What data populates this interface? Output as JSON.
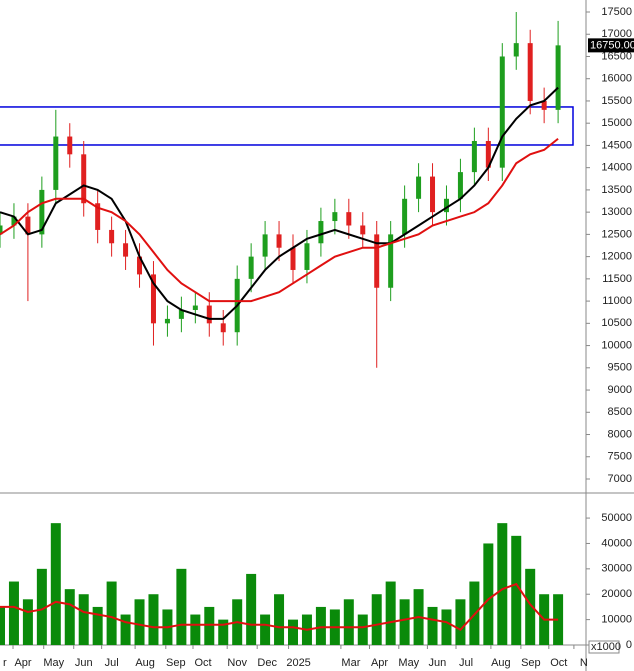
{
  "chart_data": [
    {
      "type": "candlestick",
      "x": [
        0,
        2,
        4,
        6,
        8,
        10,
        12,
        14,
        16,
        18,
        20,
        22,
        24,
        26,
        28,
        30,
        32,
        34,
        36,
        38,
        40,
        42,
        44,
        46,
        48,
        50,
        52,
        54,
        56,
        58,
        60,
        62,
        64,
        66,
        68,
        70,
        72,
        74,
        76,
        78,
        80
      ],
      "open": [
        12500,
        12700,
        12900,
        12500,
        13500,
        14700,
        14300,
        13200,
        12600,
        12300,
        12000,
        11600,
        10500,
        10600,
        10800,
        10900,
        10500,
        10300,
        11500,
        12000,
        12500,
        12200,
        11700,
        12300,
        12800,
        13000,
        12700,
        12500,
        11300,
        12500,
        13300,
        13800,
        13000,
        13300,
        13900,
        14600,
        14000,
        16500,
        16800,
        15500,
        15300
      ],
      "high": [
        13000,
        13200,
        13200,
        13800,
        15300,
        15000,
        14600,
        13500,
        12900,
        12600,
        12300,
        11900,
        10900,
        11100,
        11200,
        11200,
        10800,
        11800,
        12300,
        12800,
        12800,
        12500,
        12600,
        13100,
        13300,
        13300,
        13000,
        12800,
        12800,
        13600,
        14100,
        14100,
        13600,
        14200,
        14900,
        14900,
        16800,
        17500,
        17100,
        15800,
        17300
      ],
      "low": [
        12200,
        12400,
        11000,
        12200,
        13200,
        14000,
        12900,
        12300,
        12000,
        11700,
        11300,
        10000,
        10200,
        10300,
        10500,
        10200,
        10000,
        10000,
        11200,
        11700,
        11900,
        11400,
        11400,
        12000,
        12500,
        12400,
        12200,
        9500,
        11000,
        12200,
        13000,
        12700,
        12700,
        13000,
        13600,
        13700,
        13700,
        16200,
        15200,
        15000,
        15000
      ],
      "close": [
        12700,
        12900,
        12500,
        13500,
        14700,
        14300,
        13200,
        12600,
        12300,
        12000,
        11600,
        10500,
        10600,
        10800,
        10900,
        10500,
        10300,
        11500,
        12000,
        12500,
        12200,
        11700,
        12300,
        12800,
        13000,
        12700,
        12500,
        11300,
        12500,
        13300,
        13800,
        13000,
        13300,
        13900,
        14600,
        14000,
        16500,
        16800,
        15500,
        15300,
        16750
      ],
      "up_color": "#1e9e1e",
      "down_color": "#e02020",
      "series": [
        {
          "color": "#000000",
          "values": [
            13000,
            12900,
            12500,
            12600,
            13200,
            13400,
            13600,
            13500,
            13300,
            12800,
            12000,
            11400,
            11000,
            10800,
            10700,
            10600,
            10600,
            10900,
            11300,
            11700,
            12000,
            12200,
            12400,
            12500,
            12600,
            12500,
            12400,
            12300,
            12300,
            12500,
            12700,
            12900,
            13100,
            13300,
            13600,
            14000,
            14700,
            15100,
            15400,
            15500,
            15800
          ]
        },
        {
          "color": "#e01010",
          "values": [
            12500,
            12700,
            13000,
            13200,
            13300,
            13300,
            13300,
            13100,
            13000,
            12800,
            12500,
            12100,
            11700,
            11400,
            11200,
            11000,
            11000,
            11000,
            11000,
            11100,
            11200,
            11400,
            11600,
            11800,
            12000,
            12100,
            12200,
            12200,
            12300,
            12400,
            12500,
            12700,
            12800,
            12900,
            13000,
            13200,
            13600,
            14100,
            14300,
            14400,
            14650
          ]
        }
      ],
      "zone": {
        "low": 14510,
        "high": 15365,
        "color": "#0000dd"
      },
      "last_price": {
        "value": 16750,
        "label": "16750.00"
      },
      "xlim": [
        0,
        84
      ],
      "ylim": [
        6685,
        17770
      ],
      "yticks": [
        7000,
        7500,
        8000,
        8500,
        9000,
        9500,
        10000,
        10500,
        11000,
        11500,
        12000,
        12500,
        13000,
        13500,
        14000,
        14500,
        15000,
        15500,
        16000,
        16500,
        17000,
        17500
      ]
    },
    {
      "type": "bar",
      "x": [
        0,
        2,
        4,
        6,
        8,
        10,
        12,
        14,
        16,
        18,
        20,
        22,
        24,
        26,
        28,
        30,
        32,
        34,
        36,
        38,
        40,
        42,
        44,
        46,
        48,
        50,
        52,
        54,
        56,
        58,
        60,
        62,
        64,
        66,
        68,
        70,
        72,
        74,
        76,
        78,
        80
      ],
      "values": [
        15000,
        25000,
        18000,
        30000,
        48000,
        22000,
        20000,
        15000,
        25000,
        12000,
        18000,
        20000,
        14000,
        30000,
        12000,
        15000,
        10000,
        18000,
        28000,
        12000,
        20000,
        10000,
        12000,
        15000,
        14000,
        18000,
        12000,
        20000,
        25000,
        18000,
        22000,
        15000,
        14000,
        18000,
        25000,
        40000,
        48000,
        43000,
        30000,
        20000,
        20000
      ],
      "color": "#0a8a0a",
      "series": [
        {
          "color": "#e01010",
          "values": [
            15000,
            15000,
            13000,
            14000,
            17000,
            16000,
            13000,
            12000,
            11000,
            9000,
            8000,
            7000,
            7000,
            8000,
            8000,
            8000,
            8000,
            9000,
            8000,
            8000,
            7000,
            7000,
            6000,
            7000,
            7000,
            7000,
            7000,
            8000,
            9000,
            10000,
            11000,
            10000,
            9000,
            6000,
            12000,
            18000,
            22000,
            24000,
            16000,
            10000,
            10000
          ]
        }
      ],
      "volume_unit": "x1000",
      "xlim": [
        0,
        84
      ],
      "ylim": [
        0,
        58300
      ],
      "yticks": [
        0,
        10000,
        20000,
        30000,
        40000,
        50000
      ],
      "xticks": [
        {
          "value": 0.7,
          "label": "r"
        },
        {
          "value": 3.3,
          "label": "Apr"
        },
        {
          "value": 7.7,
          "label": "May"
        },
        {
          "value": 12,
          "label": "Jun"
        },
        {
          "value": 16,
          "label": "Jul"
        },
        {
          "value": 20.8,
          "label": "Aug"
        },
        {
          "value": 25.2,
          "label": "Sep"
        },
        {
          "value": 29.1,
          "label": "Oct"
        },
        {
          "value": 34,
          "label": "Nov"
        },
        {
          "value": 38.3,
          "label": "Dec"
        },
        {
          "value": 42.8,
          "label": "2025"
        },
        {
          "value": 50.3,
          "label": "Mar"
        },
        {
          "value": 54.4,
          "label": "Apr"
        },
        {
          "value": 58.6,
          "label": "May"
        },
        {
          "value": 62.7,
          "label": "Jun"
        },
        {
          "value": 66.8,
          "label": "Jul"
        },
        {
          "value": 71.8,
          "label": "Aug"
        },
        {
          "value": 76.1,
          "label": "Sep"
        },
        {
          "value": 80.1,
          "label": "Oct"
        },
        {
          "value": 83.7,
          "label": "N"
        }
      ]
    }
  ]
}
